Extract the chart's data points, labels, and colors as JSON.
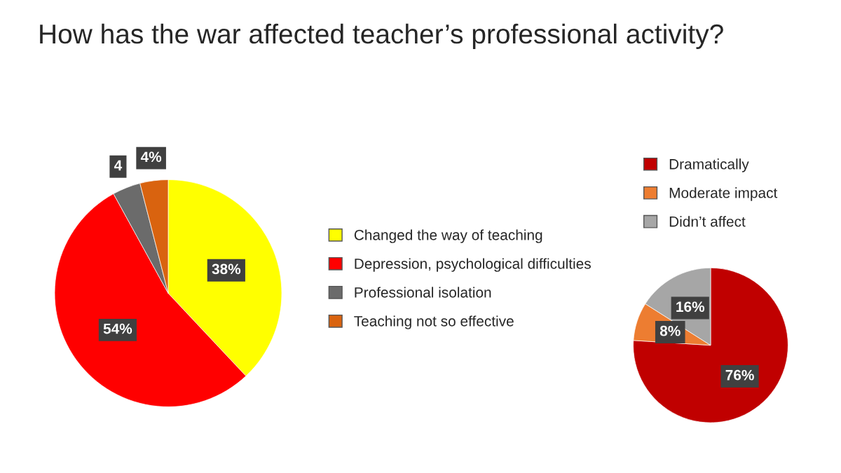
{
  "chart_data": [
    {
      "type": "pie",
      "title": "How has the war affected teacher’s professional activity?",
      "categories": [
        "Changed the way of teaching",
        "Depression, psychological difficulties",
        "Professional isolation",
        "Teaching not so effective"
      ],
      "values": [
        38,
        54,
        4,
        4
      ],
      "colors": [
        "#ffff00",
        "#ff0000",
        "#6b6b6b",
        "#d9630f"
      ],
      "value_labels": [
        "38%",
        "54%",
        "4",
        "4%"
      ],
      "legend": "right"
    },
    {
      "type": "pie",
      "categories": [
        "Dramatically",
        "Moderate impact",
        "Didn’t affect"
      ],
      "values": [
        76,
        8,
        16
      ],
      "colors": [
        "#c00000",
        "#ed7d31",
        "#a6a6a6"
      ],
      "value_labels": [
        "76%",
        "8%",
        "16%"
      ],
      "legend": "top"
    }
  ]
}
